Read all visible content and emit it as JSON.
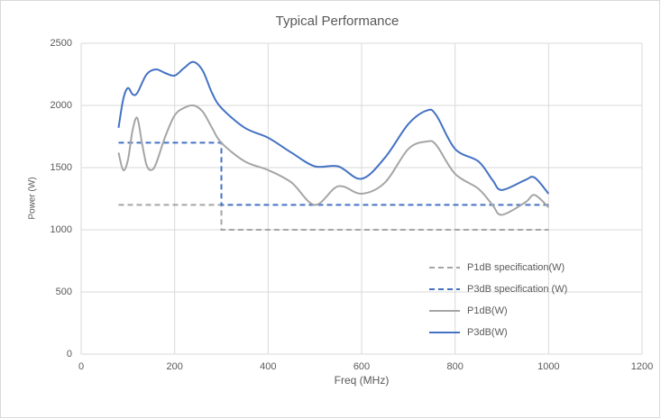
{
  "chart_data": {
    "type": "line",
    "title": "Typical Performance",
    "x_label": "Freq (MHz)",
    "y_label": "Power (W)",
    "xlim": [
      0,
      1200
    ],
    "xticks": [
      0,
      200,
      400,
      600,
      800,
      1000,
      1200
    ],
    "ylim": [
      0,
      2500
    ],
    "yticks": [
      0,
      500,
      1000,
      1500,
      2000,
      2500
    ],
    "grid": true,
    "legend": "lower right",
    "series": [
      {
        "name": "P1dB specification(W)",
        "color": "#a5a5a5",
        "dashed": true,
        "smooth": false,
        "x": [
          80,
          300,
          300,
          1000
        ],
        "values": [
          1200,
          1200,
          1000,
          1000
        ]
      },
      {
        "name": "P3dB specification (W)",
        "color": "#4472c4",
        "dashed": true,
        "smooth": false,
        "x": [
          80,
          300,
          300,
          1000
        ],
        "values": [
          1700,
          1700,
          1200,
          1200
        ]
      },
      {
        "name": "P1dB(W)",
        "color": "#a5a5a5",
        "dashed": false,
        "smooth": true,
        "x": [
          80,
          90,
          100,
          110,
          120,
          130,
          140,
          150,
          160,
          180,
          200,
          220,
          240,
          260,
          280,
          300,
          350,
          400,
          450,
          500,
          550,
          600,
          650,
          700,
          740,
          760,
          800,
          850,
          880,
          900,
          950,
          970,
          1000
        ],
        "values": [
          1620,
          1480,
          1560,
          1800,
          1900,
          1700,
          1520,
          1480,
          1530,
          1750,
          1920,
          1980,
          2000,
          1950,
          1820,
          1700,
          1550,
          1480,
          1380,
          1200,
          1350,
          1290,
          1380,
          1650,
          1710,
          1680,
          1450,
          1330,
          1200,
          1120,
          1220,
          1280,
          1180
        ]
      },
      {
        "name": "P3dB(W)",
        "color": "#4472c4",
        "dashed": false,
        "smooth": true,
        "x": [
          80,
          90,
          100,
          110,
          120,
          140,
          160,
          180,
          200,
          220,
          240,
          260,
          280,
          300,
          350,
          400,
          450,
          500,
          550,
          600,
          650,
          700,
          740,
          760,
          800,
          850,
          880,
          900,
          950,
          970,
          1000
        ],
        "values": [
          1820,
          2050,
          2140,
          2090,
          2100,
          2250,
          2290,
          2260,
          2240,
          2300,
          2350,
          2280,
          2100,
          1980,
          1820,
          1740,
          1620,
          1510,
          1510,
          1410,
          1580,
          1850,
          1960,
          1920,
          1650,
          1550,
          1400,
          1320,
          1400,
          1420,
          1290
        ]
      }
    ]
  }
}
